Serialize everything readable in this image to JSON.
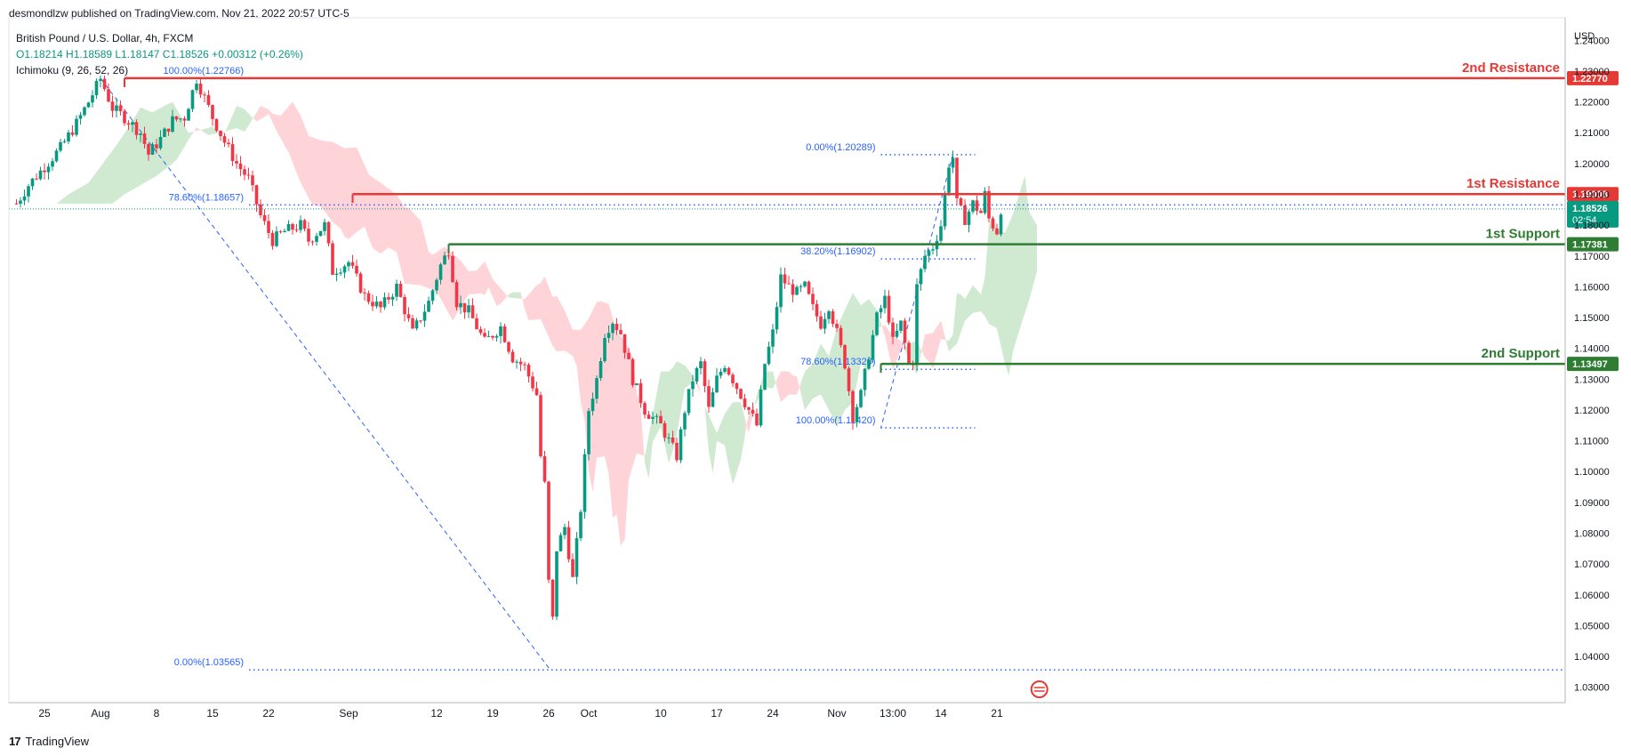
{
  "header": {
    "publisher": "desmondlzw published on TradingView.com, Nov 21, 2022 20:57 UTC-5"
  },
  "legend": {
    "symbol": "British Pound / U.S. Dollar, 4h, FXCM",
    "ohlc": "O1.18214  H1.18589  L1.18147  C1.18526  +0.00312 (+0.26%)",
    "indicator": "Ichimoku (9, 26, 52, 26)"
  },
  "footer": {
    "brand": "TradingView",
    "logo_icon": "tradingview-logo-icon"
  },
  "colors": {
    "up": "#089981",
    "down": "#f23645",
    "resistance": "#e53935",
    "support": "#2e7d32",
    "fib": "#2962ff",
    "cloud_bull": "#c8e6c9",
    "cloud_bear": "#ffcdd2",
    "price_tag": "#089981"
  },
  "chart_data": {
    "type": "candlestick",
    "symbol": "GBPUSD",
    "timeframe": "4h",
    "y_axis_label": "USD",
    "ylim": [
      1.025,
      1.245
    ],
    "y_ticks": [
      1.03,
      1.04,
      1.05,
      1.06,
      1.07,
      1.08,
      1.09,
      1.1,
      1.11,
      1.12,
      1.13,
      1.14,
      1.15,
      1.16,
      1.17,
      1.18,
      1.19,
      1.2,
      1.21,
      1.22,
      1.23,
      1.24
    ],
    "x_ticks": [
      {
        "label": "25",
        "day": 0
      },
      {
        "label": "Aug",
        "day": 7
      },
      {
        "label": "8",
        "day": 14
      },
      {
        "label": "15",
        "day": 21
      },
      {
        "label": "22",
        "day": 28
      },
      {
        "label": "Sep",
        "day": 38
      },
      {
        "label": "12",
        "day": 49
      },
      {
        "label": "19",
        "day": 56
      },
      {
        "label": "26",
        "day": 63
      },
      {
        "label": "Oct",
        "day": 68
      },
      {
        "label": "10",
        "day": 77
      },
      {
        "label": "17",
        "day": 84
      },
      {
        "label": "24",
        "day": 91
      },
      {
        "label": "Nov",
        "day": 99
      },
      {
        "label": "13:00",
        "day": 106
      },
      {
        "label": "14",
        "day": 112
      },
      {
        "label": "21",
        "day": 119
      }
    ],
    "close_path": [
      [
        -3.5,
        1.187
      ],
      [
        -2,
        1.193
      ],
      [
        0,
        1.199
      ],
      [
        2,
        1.205
      ],
      [
        4,
        1.213
      ],
      [
        5.5,
        1.22
      ],
      [
        7,
        1.2275
      ],
      [
        8.5,
        1.218
      ],
      [
        10,
        1.215
      ],
      [
        12,
        1.21
      ],
      [
        13,
        1.203
      ],
      [
        14.5,
        1.208
      ],
      [
        16,
        1.214
      ],
      [
        17.5,
        1.215
      ],
      [
        19,
        1.2275
      ],
      [
        21,
        1.215
      ],
      [
        22.5,
        1.207
      ],
      [
        24,
        1.2
      ],
      [
        25.5,
        1.195
      ],
      [
        27,
        1.183
      ],
      [
        28.5,
        1.175
      ],
      [
        30,
        1.178
      ],
      [
        32,
        1.18
      ],
      [
        33,
        1.175
      ],
      [
        35,
        1.18
      ],
      [
        36,
        1.165
      ],
      [
        38,
        1.168
      ],
      [
        40,
        1.157
      ],
      [
        42,
        1.153
      ],
      [
        44,
        1.16
      ],
      [
        46,
        1.145
      ],
      [
        48,
        1.155
      ],
      [
        49.5,
        1.167
      ],
      [
        50.5,
        1.172
      ],
      [
        51.5,
        1.155
      ],
      [
        53,
        1.152
      ],
      [
        55,
        1.142
      ],
      [
        57,
        1.147
      ],
      [
        58.5,
        1.137
      ],
      [
        60,
        1.134
      ],
      [
        61.5,
        1.125
      ],
      [
        62,
        1.105
      ],
      [
        62.8,
        1.09
      ],
      [
        63.2,
        1.038
      ],
      [
        64,
        1.075
      ],
      [
        65,
        1.082
      ],
      [
        66,
        1.065
      ],
      [
        67,
        1.088
      ],
      [
        68,
        1.12
      ],
      [
        69,
        1.13
      ],
      [
        70,
        1.145
      ],
      [
        71,
        1.149
      ],
      [
        72,
        1.145
      ],
      [
        73.5,
        1.13
      ],
      [
        75,
        1.12
      ],
      [
        77,
        1.115
      ],
      [
        78,
        1.11
      ],
      [
        79,
        1.105
      ],
      [
        80,
        1.12
      ],
      [
        81,
        1.13
      ],
      [
        82,
        1.135
      ],
      [
        83,
        1.12
      ],
      [
        84,
        1.13
      ],
      [
        85,
        1.135
      ],
      [
        86,
        1.13
      ],
      [
        87,
        1.125
      ],
      [
        88,
        1.12
      ],
      [
        89,
        1.115
      ],
      [
        90,
        1.135
      ],
      [
        91,
        1.145
      ],
      [
        92,
        1.163
      ],
      [
        93,
        1.16
      ],
      [
        94,
        1.158
      ],
      [
        95,
        1.16
      ],
      [
        96,
        1.153
      ],
      [
        97,
        1.148
      ],
      [
        98,
        1.154
      ],
      [
        99,
        1.145
      ],
      [
        100,
        1.135
      ],
      [
        101,
        1.118
      ],
      [
        102,
        1.125
      ],
      [
        103,
        1.138
      ],
      [
        104,
        1.15
      ],
      [
        105,
        1.156
      ],
      [
        105.5,
        1.15
      ],
      [
        106,
        1.142
      ],
      [
        107,
        1.148
      ],
      [
        108,
        1.135
      ],
      [
        108.5,
        1.136
      ],
      [
        109,
        1.16
      ],
      [
        110,
        1.17
      ],
      [
        111,
        1.173
      ],
      [
        112,
        1.18
      ],
      [
        112.5,
        1.19
      ],
      [
        113,
        1.2
      ],
      [
        113.5,
        1.202
      ],
      [
        114,
        1.187
      ],
      [
        115,
        1.182
      ],
      [
        116,
        1.187
      ],
      [
        117,
        1.184
      ],
      [
        117.5,
        1.19
      ],
      [
        118,
        1.182
      ],
      [
        119,
        1.178
      ],
      [
        119.5,
        1.1853
      ]
    ],
    "current_price": 1.18526,
    "current_price_label": "1.18526",
    "countdown": "02:54",
    "levels": [
      {
        "name": "2nd Resistance",
        "value": 1.2277,
        "label": "1.22770",
        "kind": "resistance",
        "from_day": 10
      },
      {
        "name": "1st Resistance",
        "value": 1.19008,
        "label": "1.19008",
        "kind": "resistance",
        "from_day": 38.5
      },
      {
        "name": "1st Support",
        "value": 1.17381,
        "label": "1.17381",
        "kind": "support",
        "from_day": 50.5
      },
      {
        "name": "2nd Support",
        "value": 1.13497,
        "label": "1.13497",
        "kind": "support",
        "from_day": 104.5
      }
    ],
    "fib_left": {
      "high_day": 7,
      "high": 1.22766,
      "low_day": 63.2,
      "low": 1.03565,
      "levels": [
        {
          "label": "100.00%(1.22766)",
          "value": 1.22766
        },
        {
          "label": "78.60%(1.18657)",
          "value": 1.18657
        },
        {
          "label": "0.00%(1.03565)",
          "value": 1.03565
        }
      ]
    },
    "fib_right": {
      "low_day": 104.5,
      "low": 1.1142,
      "high_day": 113.5,
      "high": 1.20289,
      "levels": [
        {
          "label": "0.00%(1.20289)",
          "value": 1.20289
        },
        {
          "label": "38.20%(1.16902)",
          "value": 1.16902
        },
        {
          "label": "78.60%(1.13320)",
          "value": 1.1332
        },
        {
          "label": "100.00%(1.11420)",
          "value": 1.1142
        }
      ]
    }
  }
}
